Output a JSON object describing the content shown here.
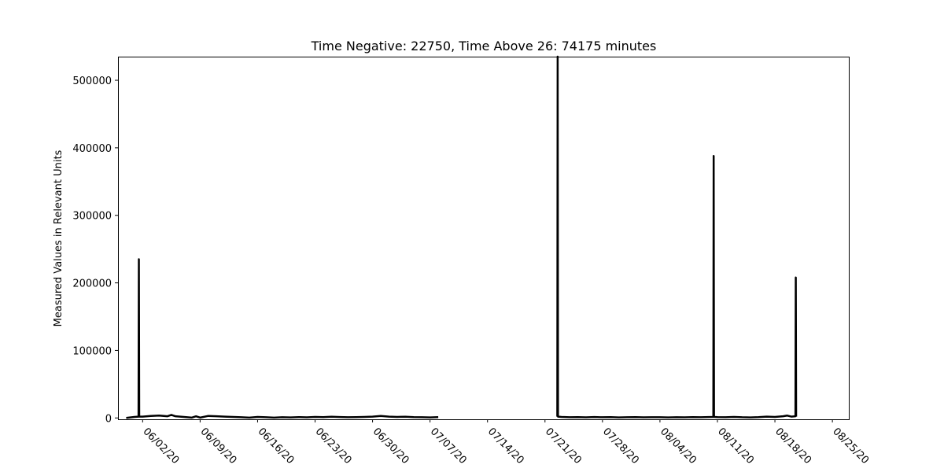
{
  "chart_data": {
    "type": "line",
    "title": "Time Negative: 22750, Time Above 26: 74175 minutes",
    "xlabel": "",
    "ylabel": "Measured Values in Relevant Units",
    "x_axis_type": "date",
    "xlim": [
      "2020-05-30",
      "2020-08-27"
    ],
    "ylim": [
      -2000,
      535000
    ],
    "grid": false,
    "line_color": "#000000",
    "x_ticks": [
      {
        "date": "2020-06-02",
        "label": "06/02/20"
      },
      {
        "date": "2020-06-09",
        "label": "06/09/20"
      },
      {
        "date": "2020-06-16",
        "label": "06/16/20"
      },
      {
        "date": "2020-06-23",
        "label": "06/23/20"
      },
      {
        "date": "2020-06-30",
        "label": "06/30/20"
      },
      {
        "date": "2020-07-07",
        "label": "07/07/20"
      },
      {
        "date": "2020-07-14",
        "label": "07/14/20"
      },
      {
        "date": "2020-07-21",
        "label": "07/21/20"
      },
      {
        "date": "2020-07-28",
        "label": "07/28/20"
      },
      {
        "date": "2020-08-04",
        "label": "08/04/20"
      },
      {
        "date": "2020-08-11",
        "label": "08/11/20"
      },
      {
        "date": "2020-08-18",
        "label": "08/18/20"
      },
      {
        "date": "2020-08-25",
        "label": "08/25/20"
      }
    ],
    "y_ticks": [
      0,
      100000,
      200000,
      300000,
      400000,
      500000
    ],
    "series": [
      {
        "segments": [
          [
            [
              "2020-05-31",
              0
            ],
            [
              "2020-06-01",
              1500
            ],
            [
              "2020-06-01T12:00",
              2000
            ],
            [
              "2020-06-01T13:00",
              235000
            ],
            [
              "2020-06-01T14:00",
              2000
            ],
            [
              "2020-06-02",
              2000
            ],
            [
              "2020-06-03",
              3000
            ],
            [
              "2020-06-04",
              3500
            ],
            [
              "2020-06-05",
              2500
            ],
            [
              "2020-06-05T12:00",
              4500
            ],
            [
              "2020-06-06",
              2500
            ],
            [
              "2020-06-07",
              1500
            ],
            [
              "2020-06-08",
              500
            ],
            [
              "2020-06-08T12:00",
              2500
            ],
            [
              "2020-06-09",
              500
            ],
            [
              "2020-06-10",
              3000
            ],
            [
              "2020-06-11",
              2500
            ],
            [
              "2020-06-12",
              2000
            ],
            [
              "2020-06-13",
              1500
            ],
            [
              "2020-06-14",
              1000
            ],
            [
              "2020-06-15",
              500
            ],
            [
              "2020-06-16",
              1500
            ],
            [
              "2020-06-17",
              1000
            ],
            [
              "2020-06-18",
              500
            ],
            [
              "2020-06-19",
              1000
            ],
            [
              "2020-06-20",
              800
            ],
            [
              "2020-06-21",
              1200
            ],
            [
              "2020-06-22",
              900
            ],
            [
              "2020-06-23",
              1500
            ],
            [
              "2020-06-24",
              1200
            ],
            [
              "2020-06-25",
              1800
            ],
            [
              "2020-06-26",
              1300
            ],
            [
              "2020-06-27",
              1000
            ],
            [
              "2020-06-28",
              1200
            ],
            [
              "2020-06-29",
              1500
            ],
            [
              "2020-06-30",
              2000
            ],
            [
              "2020-07-01",
              3000
            ],
            [
              "2020-07-02",
              2000
            ],
            [
              "2020-07-03",
              1500
            ],
            [
              "2020-07-04",
              1800
            ],
            [
              "2020-07-05",
              1200
            ],
            [
              "2020-07-06",
              1000
            ],
            [
              "2020-07-07",
              800
            ],
            [
              "2020-07-08",
              1200
            ]
          ],
          [
            [
              "2020-07-22T12:00",
              2000
            ],
            [
              "2020-07-22T13:00",
              535000
            ],
            [
              "2020-07-22T14:00",
              2000
            ],
            [
              "2020-07-23",
              1500
            ],
            [
              "2020-07-24",
              1000
            ],
            [
              "2020-07-25",
              1200
            ],
            [
              "2020-07-26",
              900
            ],
            [
              "2020-07-27",
              1300
            ],
            [
              "2020-07-28",
              1000
            ],
            [
              "2020-07-29",
              1200
            ],
            [
              "2020-07-30",
              800
            ],
            [
              "2020-07-31",
              1000
            ],
            [
              "2020-08-01",
              1200
            ],
            [
              "2020-08-02",
              900
            ],
            [
              "2020-08-03",
              1100
            ],
            [
              "2020-08-04",
              1000
            ],
            [
              "2020-08-05",
              800
            ],
            [
              "2020-08-06",
              1000
            ],
            [
              "2020-08-07",
              900
            ],
            [
              "2020-08-08",
              1200
            ],
            [
              "2020-08-09",
              1000
            ],
            [
              "2020-08-10T12:00",
              1500
            ],
            [
              "2020-08-10T13:00",
              388000
            ],
            [
              "2020-08-10T14:00",
              1500
            ],
            [
              "2020-08-11",
              1200
            ],
            [
              "2020-08-12",
              1000
            ],
            [
              "2020-08-13",
              1500
            ],
            [
              "2020-08-14",
              1000
            ],
            [
              "2020-08-15",
              800
            ],
            [
              "2020-08-16",
              1200
            ],
            [
              "2020-08-17",
              2000
            ],
            [
              "2020-08-18",
              1500
            ],
            [
              "2020-08-19",
              2500
            ],
            [
              "2020-08-19T12:00",
              3500
            ],
            [
              "2020-08-20",
              2000
            ],
            [
              "2020-08-20T12:00",
              2500
            ],
            [
              "2020-08-20T13:00",
              208000
            ],
            [
              "2020-08-20T14:00",
              2000
            ]
          ]
        ]
      }
    ]
  }
}
